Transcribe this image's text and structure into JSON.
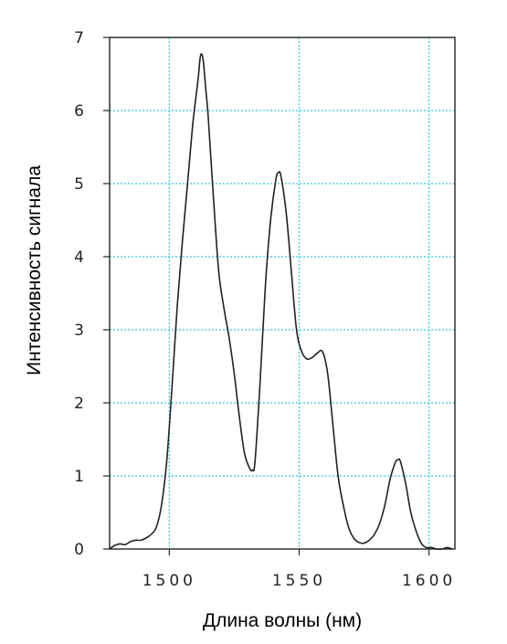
{
  "chart_data": {
    "type": "line",
    "title": "",
    "xlabel": "Длина волны (нм)",
    "ylabel": "Интенсивность сигнала",
    "xlim": [
      1477,
      1610
    ],
    "ylim": [
      0,
      7
    ],
    "x_ticks": [
      1500,
      1550,
      1600
    ],
    "x_tick_labels": [
      "1500",
      "1550",
      "1600"
    ],
    "y_ticks": [
      0,
      1,
      2,
      3,
      4,
      5,
      6,
      7
    ],
    "y_tick_labels": [
      "0",
      "1",
      "2",
      "3",
      "4",
      "5",
      "6",
      "7"
    ],
    "grid": true,
    "grid_color": "#38c8dc",
    "line_color": "#222222",
    "series": [
      {
        "x": [
          1477,
          1479,
          1481,
          1483,
          1485,
          1487,
          1489,
          1491,
          1493,
          1495,
          1497,
          1499,
          1501,
          1503,
          1505,
          1507,
          1509,
          1511,
          1512,
          1513,
          1514,
          1515,
          1517,
          1519,
          1521,
          1523,
          1525,
          1527,
          1529,
          1531,
          1532,
          1533,
          1535,
          1537,
          1539,
          1541,
          1542,
          1543,
          1545,
          1547,
          1549,
          1551,
          1553,
          1555,
          1557,
          1559,
          1561,
          1563,
          1565,
          1567,
          1569,
          1571,
          1573,
          1575,
          1577,
          1579,
          1581,
          1583,
          1585,
          1587,
          1588,
          1589,
          1591,
          1593,
          1595,
          1597,
          1599,
          1601,
          1603,
          1605,
          1607,
          1609
        ],
        "y": [
          0.0,
          0.05,
          0.07,
          0.06,
          0.1,
          0.12,
          0.12,
          0.15,
          0.2,
          0.3,
          0.6,
          1.2,
          2.2,
          3.3,
          4.2,
          5.0,
          5.8,
          6.4,
          6.75,
          6.7,
          6.3,
          5.9,
          4.8,
          3.8,
          3.3,
          2.9,
          2.4,
          1.8,
          1.3,
          1.1,
          1.08,
          1.2,
          2.3,
          3.6,
          4.5,
          5.05,
          5.15,
          5.1,
          4.6,
          3.8,
          3.0,
          2.7,
          2.6,
          2.62,
          2.68,
          2.7,
          2.4,
          1.7,
          1.0,
          0.6,
          0.3,
          0.15,
          0.09,
          0.08,
          0.12,
          0.2,
          0.35,
          0.6,
          0.95,
          1.18,
          1.22,
          1.2,
          0.9,
          0.5,
          0.25,
          0.08,
          0.02,
          0.02,
          0.0,
          0.0,
          0.02,
          0.0
        ]
      }
    ]
  }
}
